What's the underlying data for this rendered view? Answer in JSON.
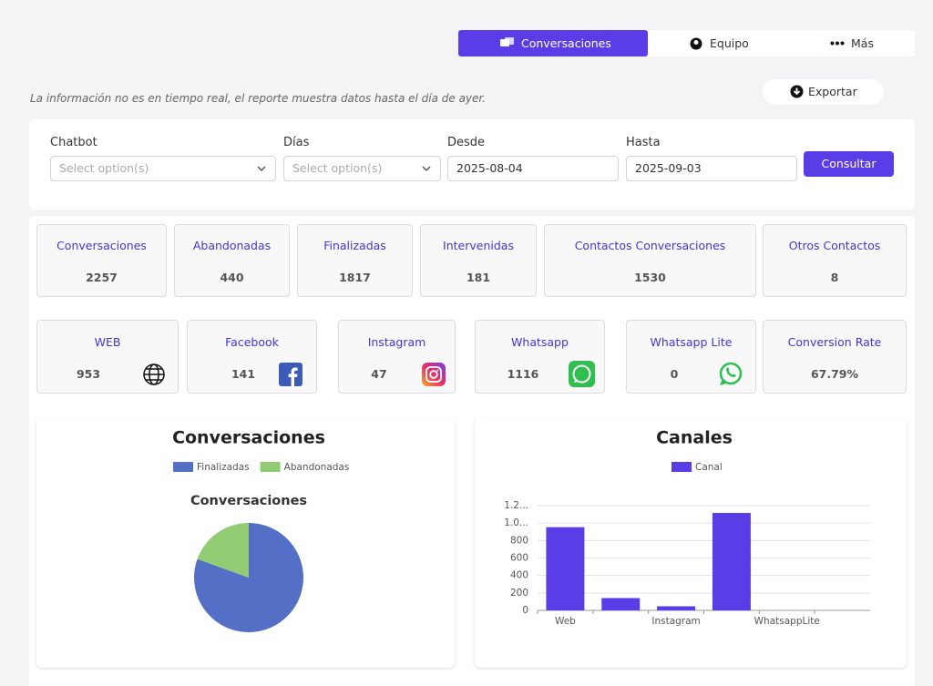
{
  "tabs": [
    "Conversaciones",
    "Equipo",
    "Más"
  ],
  "notice": "La información no es en tiempo real, el reporte muestra datos hasta el día de ayer.",
  "export": "Exportar",
  "filters": {
    "labels": [
      "Chatbot",
      "Días",
      "Desde",
      "Hasta"
    ],
    "placeholders": [
      "Select option(s)",
      "Select option(s)"
    ],
    "dates": [
      "2025-08-04",
      "2025-09-03"
    ],
    "button": "Consultar"
  },
  "stats": [
    {
      "label": "Conversaciones",
      "value": 2257
    },
    {
      "label": "Abandonadas",
      "value": 440
    },
    {
      "label": "Finalizadas",
      "value": 1817
    },
    {
      "label": "Intervenidas",
      "value": 181
    },
    {
      "label": "Contactos Conversaciones",
      "value": 1530
    },
    {
      "label": "Otros Contactos",
      "value": 8
    }
  ],
  "channels": [
    {
      "label": "WEB",
      "value": 953
    },
    {
      "label": "Facebook",
      "value": 141
    },
    {
      "label": "Instagram",
      "value": 47
    },
    {
      "label": "Whatsapp",
      "value": 1116
    },
    {
      "label": "Whatsapp Lite",
      "value": 0
    },
    {
      "label": "Conversion Rate",
      "value": "67.79%"
    }
  ],
  "chart_data": [
    {
      "type": "pie",
      "title": "Conversaciones",
      "subtitle": "Conversaciones",
      "categories": [
        "Finalizadas",
        "Abandonadas"
      ],
      "values": [
        1817,
        440
      ],
      "colors": [
        "#5470c6",
        "#91cc75"
      ]
    },
    {
      "type": "bar",
      "title": "Canales",
      "categories": [
        "Web",
        null,
        "Instagram",
        null,
        "WhatsappLite",
        null
      ],
      "series": [
        {
          "name": "Canal",
          "color": "#5a3de6",
          "values": [
            953,
            141,
            47,
            1116,
            0,
            0
          ]
        }
      ],
      "ylim": [
        0,
        1200
      ],
      "yticks": [
        0,
        200,
        400,
        600,
        800,
        {
          "value": 1000,
          "label": "1.0..."
        },
        {
          "value": 1200,
          "label": "1.2..."
        }
      ],
      "grid": true
    }
  ]
}
